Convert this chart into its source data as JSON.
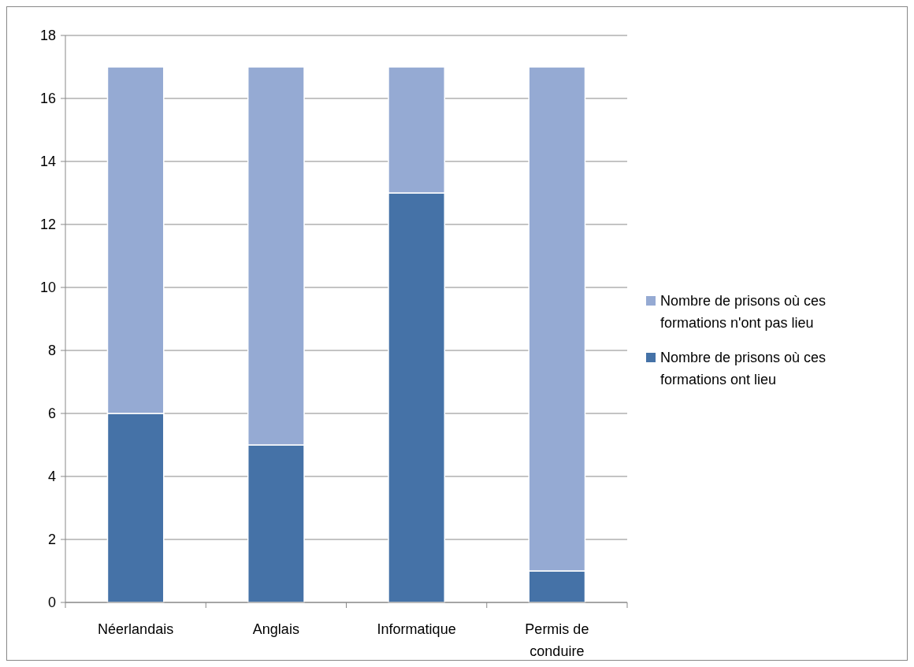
{
  "chart_data": {
    "type": "bar",
    "stacked": true,
    "categories": [
      "Néerlandais",
      "Anglais",
      "Informatique",
      "Permis de conduire"
    ],
    "series": [
      {
        "name": "Nombre de prisons où ces formations ont lieu",
        "color": "#4572a7",
        "values": [
          6,
          5,
          13,
          1
        ]
      },
      {
        "name": "Nombre de prisons où ces formations n'ont pas lieu",
        "color": "#95aad3",
        "values": [
          11,
          12,
          4,
          16
        ]
      }
    ],
    "ylim": [
      0,
      18
    ],
    "yticks": [
      0,
      2,
      4,
      6,
      8,
      10,
      12,
      14,
      16,
      18
    ],
    "grid": "y",
    "legend": "right"
  }
}
